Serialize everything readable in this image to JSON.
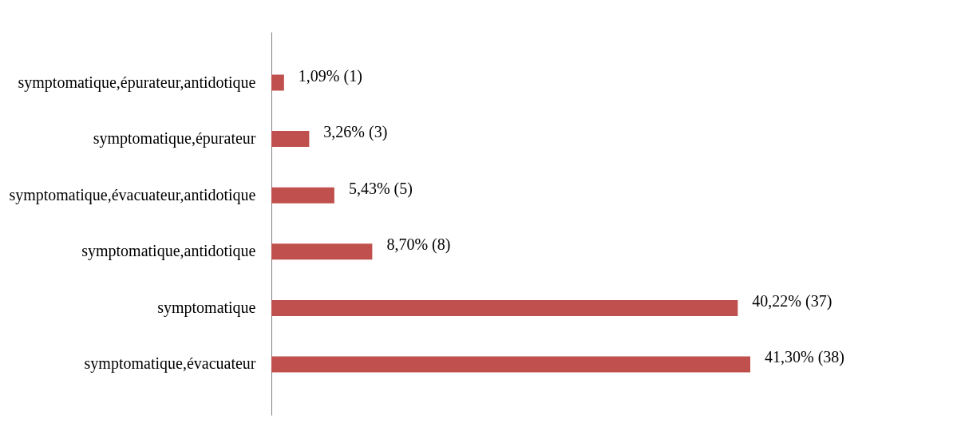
{
  "chart_data": {
    "type": "bar",
    "orientation": "horizontal",
    "categories": [
      "symptomatique,épurateur,antidotique",
      "symptomatique,épurateur",
      "symptomatique,évacuateur,antidotique",
      "symptomatique,antidotique",
      "symptomatique",
      "symptomatique,évacuateur"
    ],
    "values": [
      1.09,
      3.26,
      5.43,
      8.7,
      40.22,
      41.3
    ],
    "value_labels": [
      "1,09% (1)",
      "3,26% (3)",
      "5,43% (5)",
      "8,70% (8)",
      "40,22% (37)",
      "41,30% (38)"
    ],
    "color": "#c0504d",
    "tick_labels": "y"
  }
}
